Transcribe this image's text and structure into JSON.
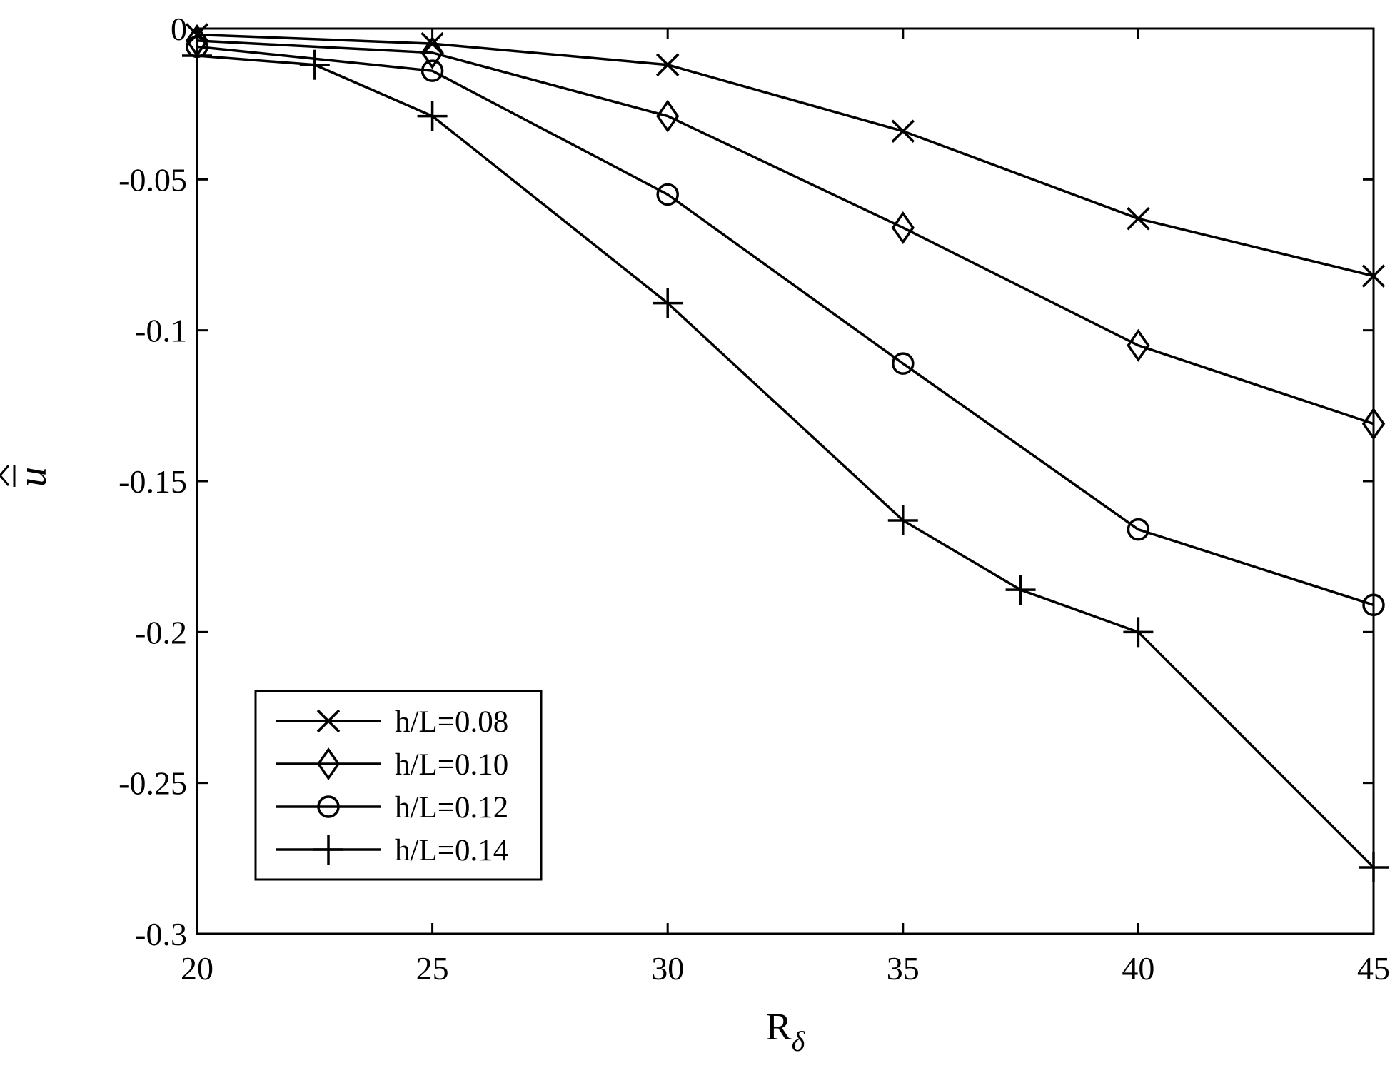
{
  "chart_data": {
    "type": "line",
    "title": "",
    "xlabel": "R",
    "xlabel_sub": "δ",
    "ylabel": "u",
    "ylabel_decor": "overline-hat",
    "xlim": [
      20,
      45
    ],
    "ylim": [
      -0.3,
      0
    ],
    "xticks": [
      20,
      25,
      30,
      35,
      40,
      45
    ],
    "xtick_labels": [
      "20",
      "25",
      "30",
      "35",
      "40",
      "45"
    ],
    "yticks": [
      0,
      -0.05,
      -0.1,
      -0.15,
      -0.2,
      -0.25,
      -0.3
    ],
    "ytick_labels": [
      "0",
      "-0.05",
      "-0.1",
      "-0.15",
      "-0.2",
      "-0.25",
      "-0.3"
    ],
    "grid": false,
    "legend_position": "bottom-left",
    "series": [
      {
        "name": "h/L=0.08",
        "marker": "x",
        "x": [
          20,
          25,
          30,
          35,
          40,
          45
        ],
        "y": [
          -0.002,
          -0.005,
          -0.012,
          -0.034,
          -0.063,
          -0.082
        ]
      },
      {
        "name": "h/L=0.10",
        "marker": "diamond",
        "x": [
          20,
          25,
          30,
          35,
          40,
          45
        ],
        "y": [
          -0.004,
          -0.008,
          -0.029,
          -0.066,
          -0.105,
          -0.131
        ]
      },
      {
        "name": "h/L=0.12",
        "marker": "circle",
        "x": [
          20,
          25,
          30,
          35,
          40,
          45
        ],
        "y": [
          -0.006,
          -0.014,
          -0.055,
          -0.111,
          -0.166,
          -0.191
        ]
      },
      {
        "name": "h/L=0.14",
        "marker": "plus",
        "x": [
          20,
          22.5,
          25,
          30,
          35,
          37.5,
          40,
          45
        ],
        "y": [
          -0.009,
          -0.012,
          -0.029,
          -0.091,
          -0.163,
          -0.186,
          -0.2,
          -0.278
        ]
      }
    ]
  }
}
